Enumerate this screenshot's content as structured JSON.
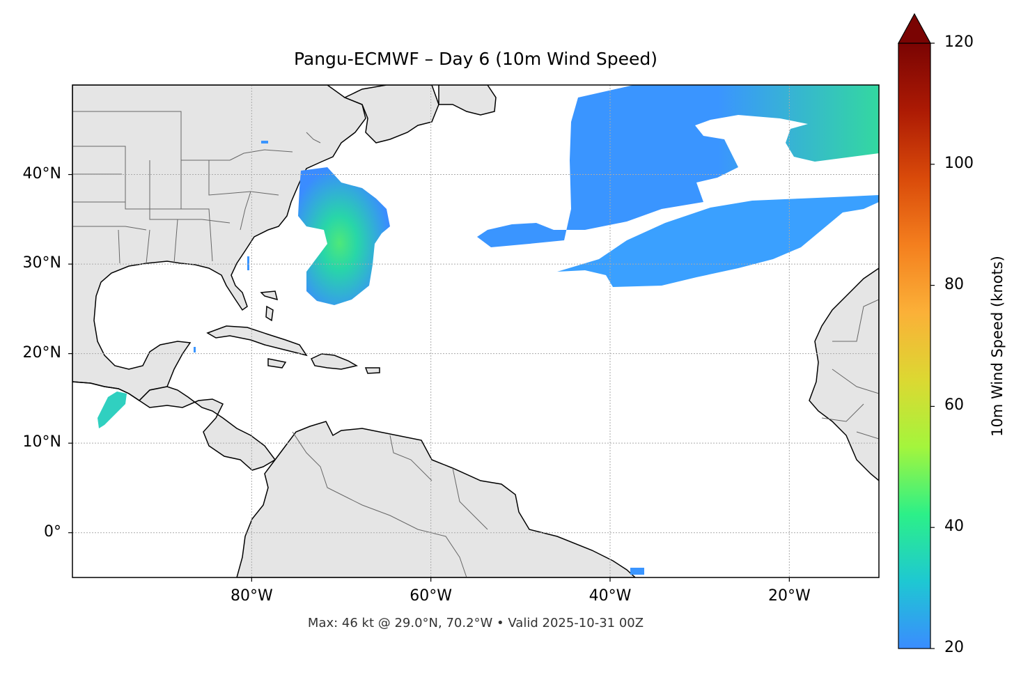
{
  "title": "Pangu-ECMWF – Day 6 (10m Wind Speed)",
  "footer": "Max: 46 kt @ 29.0°N, 70.2°W • Valid 2025-10-31 00Z",
  "map": {
    "lon_range": [
      -100,
      -10
    ],
    "lat_range": [
      -5,
      50
    ],
    "lat_ticks": [
      {
        "value": 40,
        "label": "40°N"
      },
      {
        "value": 30,
        "label": "30°N"
      },
      {
        "value": 20,
        "label": "20°N"
      },
      {
        "value": 10,
        "label": "10°N"
      },
      {
        "value": 0,
        "label": "0°"
      }
    ],
    "lon_ticks": [
      {
        "value": -80,
        "label": "80°W"
      },
      {
        "value": -60,
        "label": "60°W"
      },
      {
        "value": -40,
        "label": "40°W"
      },
      {
        "value": -20,
        "label": "20°W"
      }
    ],
    "gridlines": true,
    "land_color": "#e5e5e5",
    "max_wind": {
      "value_kt": 46,
      "lat": 29.0,
      "lon": -70.2
    }
  },
  "colorbar": {
    "label": "10m Wind Speed (knots)",
    "range": [
      20,
      120
    ],
    "extend": "max",
    "ticks": [
      {
        "value": 120,
        "label": "120"
      },
      {
        "value": 100,
        "label": "100"
      },
      {
        "value": 80,
        "label": "80"
      },
      {
        "value": 60,
        "label": "60"
      },
      {
        "value": 40,
        "label": "40"
      },
      {
        "value": 20,
        "label": "20"
      }
    ],
    "colors": [
      "#3a8cff",
      "#1ec8d2",
      "#2cf088",
      "#a4f53c",
      "#dcd832",
      "#fbb038",
      "#f47f1e",
      "#d94a0a",
      "#ac1a04",
      "#7a0403"
    ]
  }
}
